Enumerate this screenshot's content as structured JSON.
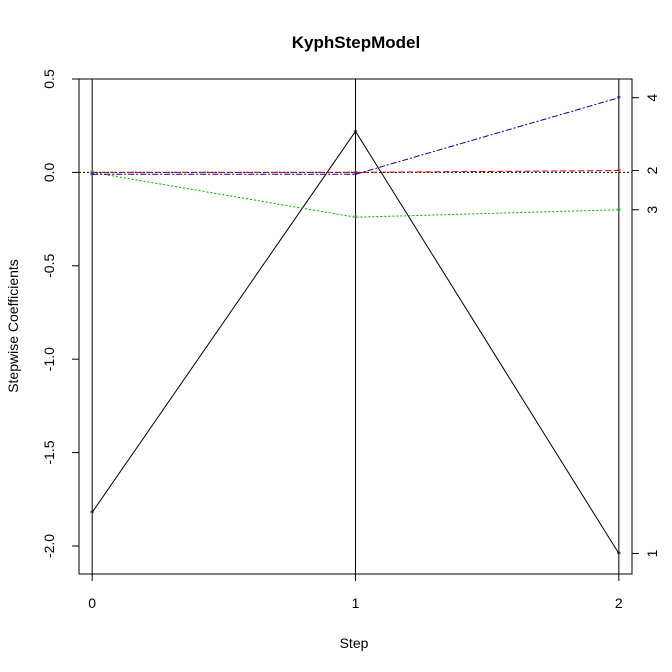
{
  "chart_data": {
    "type": "line",
    "title": "KyphStepModel",
    "xlabel": "Step",
    "ylabel": "Stepwise Coefficients",
    "x": [
      0,
      1,
      2
    ],
    "xlim": [
      -0.05,
      2.05
    ],
    "ylim": [
      -2.15,
      0.5
    ],
    "x_ticks": [
      "0",
      "1",
      "2"
    ],
    "y_ticks": [
      "0.5",
      "0.0",
      "-0.5",
      "-1.0",
      "-1.5",
      "-2.0"
    ],
    "y_tick_values": [
      0.5,
      0.0,
      -0.5,
      -1.0,
      -1.5,
      -2.0
    ],
    "zero_line": true,
    "grid": false,
    "series": [
      {
        "name": "1",
        "color": "#000000",
        "dash": "",
        "values": [
          -1.82,
          0.22,
          -2.04
        ]
      },
      {
        "name": "2",
        "color": "#cc0000",
        "dash": "6,3",
        "values": [
          0.0,
          0.0,
          0.01
        ]
      },
      {
        "name": "3",
        "color": "#00aa00",
        "dash": "2,2",
        "values": [
          0.0,
          -0.24,
          -0.2
        ]
      },
      {
        "name": "4",
        "color": "#0000aa",
        "dash": "6,2,2,2",
        "values": [
          -0.01,
          -0.01,
          0.4
        ]
      }
    ]
  }
}
